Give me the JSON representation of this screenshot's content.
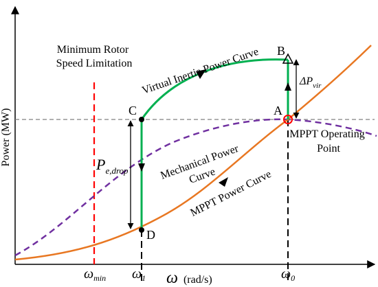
{
  "axes": {
    "ylabel": "Power (MW)",
    "xlabel_symbol": "ω",
    "xlabel_unit": "(rad/s)"
  },
  "ticks": {
    "omega_min": {
      "symbol": "ω",
      "sub": "min"
    },
    "omega_1": {
      "symbol": "ω",
      "sub": "1"
    },
    "omega_0": {
      "symbol": "ω",
      "sub": "0"
    }
  },
  "labels": {
    "min_rotor_line1": "Minimum Rotor",
    "min_rotor_line2": "Speed Limitation",
    "virtual_inertia": "Virtual Inertia Power Curve",
    "mechanical_line1": "Mechanical Power",
    "mechanical_line2": "Curve",
    "mppt_curve": "MPPT Power Curve",
    "mppt_op_line1": "MPPT Operating",
    "mppt_op_line2": "Point",
    "delta_p_symbol": "ΔP",
    "delta_p_sub": "vir",
    "pe_symbol": "P",
    "pe_sub": "e,drop"
  },
  "points": {
    "A": "A",
    "B": "B",
    "C": "C",
    "D": "D"
  },
  "colors": {
    "mppt_curve": "#E87722",
    "mechanical_curve": "#7030A0",
    "virtual_inertia": "#00B050",
    "min_speed_line": "#FF0000",
    "operating_point": "#FF0000",
    "axes": "#000000",
    "reference_lines": "#808080"
  }
}
